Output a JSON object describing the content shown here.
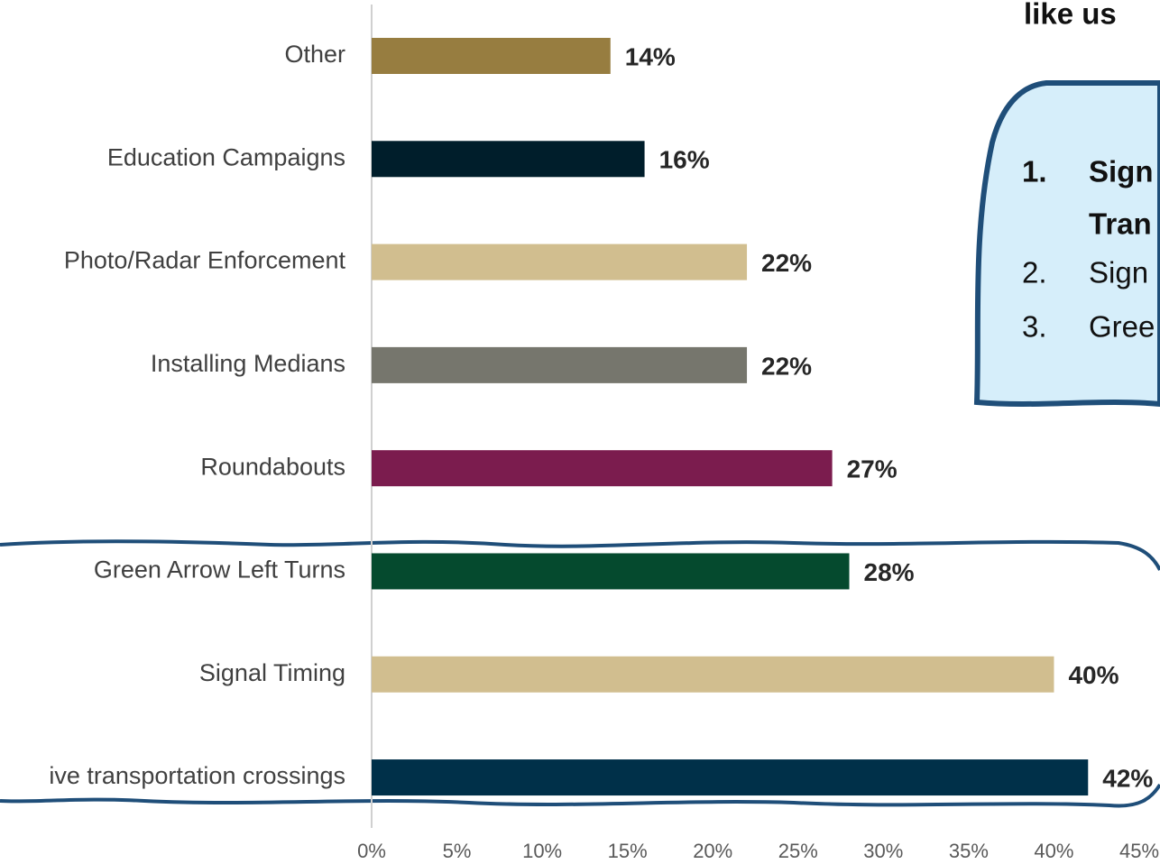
{
  "chart_data": {
    "type": "bar",
    "orientation": "horizontal",
    "categories": [
      "Other",
      "Education Campaigns",
      "Photo/Radar Enforcement",
      "Installing Medians",
      "Roundabouts",
      "Green Arrow Left Turns",
      "Signal Timing",
      "ive transportation crossings"
    ],
    "values": [
      14,
      16,
      22,
      22,
      27,
      28,
      40,
      42
    ],
    "value_labels": [
      "14%",
      "16%",
      "22%",
      "22%",
      "27%",
      "28%",
      "40%",
      "42%"
    ],
    "colors": [
      "#977d40",
      "#001e2b",
      "#d1be8f",
      "#76766d",
      "#7b1c4e",
      "#054a2e",
      "#d1be8f",
      "#003049"
    ],
    "xlim": [
      0,
      45
    ],
    "xticks": [
      {
        "value": 0,
        "label": "0%"
      },
      {
        "value": 5,
        "label": "5%"
      },
      {
        "value": 10,
        "label": "10%"
      },
      {
        "value": 15,
        "label": "15%"
      },
      {
        "value": 20,
        "label": "20%"
      },
      {
        "value": 25,
        "label": "25%"
      },
      {
        "value": 30,
        "label": "30%"
      },
      {
        "value": 35,
        "label": "35%"
      },
      {
        "value": 40,
        "label": "40%"
      },
      {
        "value": 45,
        "label": "45%"
      }
    ],
    "grid": false,
    "annotation": {
      "title": "like us",
      "items": [
        {
          "number": "1.",
          "lines": [
            "Sign",
            "Tran"
          ],
          "bold": true
        },
        {
          "number": "2.",
          "lines": [
            "Sign"
          ],
          "bold": false
        },
        {
          "number": "3.",
          "lines": [
            "Gree"
          ],
          "bold": false
        }
      ]
    }
  }
}
